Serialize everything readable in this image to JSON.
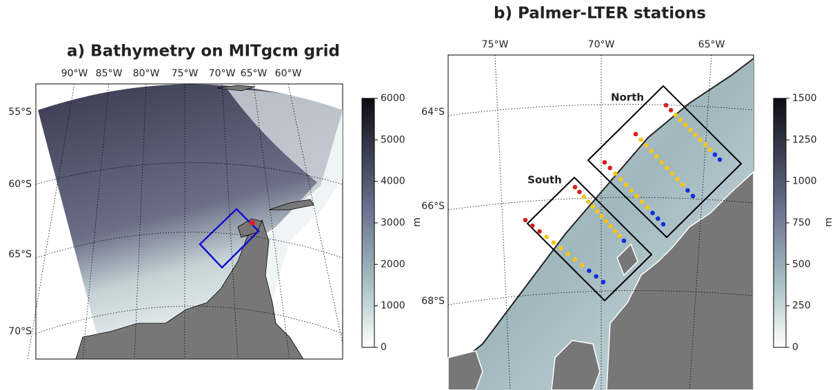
{
  "panels": [
    {
      "title": "a) Bathymetry on MITgcm grid",
      "lon_labels": [
        "90°W",
        "85°W",
        "80°W",
        "75°W",
        "70°W",
        "65°W",
        "60°W"
      ],
      "lat_labels": [
        "55°S",
        "60°S",
        "65°S",
        "70°S"
      ],
      "colorbar": {
        "range": [
          0,
          6000
        ],
        "ticks": [
          0,
          1000,
          2000,
          3000,
          4000,
          5000,
          6000
        ],
        "label": "m"
      }
    },
    {
      "title": "b) Palmer-LTER stations",
      "lon_labels": [
        "75°W",
        "70°W",
        "65°W"
      ],
      "lat_labels": [
        "64°S",
        "66°S",
        "68°S"
      ],
      "box_labels": [
        "North",
        "South"
      ],
      "colorbar": {
        "range": [
          0,
          1500
        ],
        "ticks": [
          0,
          250,
          500,
          750,
          1000,
          1250,
          1500
        ],
        "label": "m"
      }
    }
  ]
}
